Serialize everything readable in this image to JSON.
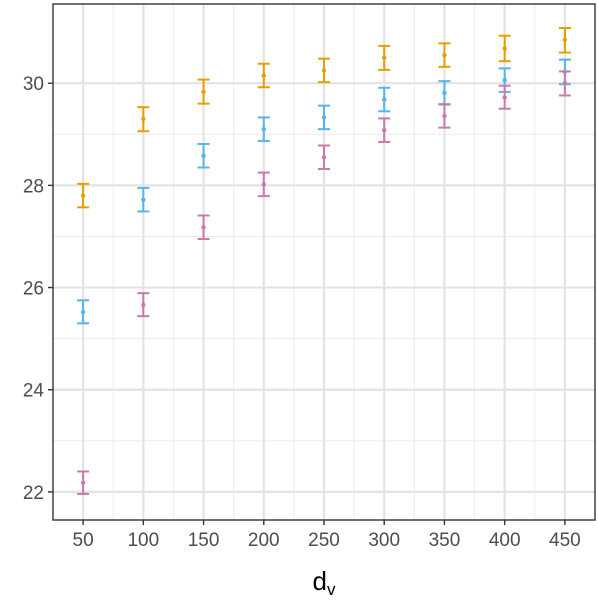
{
  "chart_data": {
    "type": "scatter",
    "title": "",
    "xlabel": "d",
    "xlabel_subscript": "v",
    "ylabel": "",
    "x": [
      50,
      100,
      150,
      200,
      250,
      300,
      350,
      400,
      450
    ],
    "xlim": [
      25,
      475
    ],
    "ylim": [
      21.45,
      31.55
    ],
    "xticks": [
      "50",
      "100",
      "150",
      "200",
      "250",
      "300",
      "350",
      "400",
      "450"
    ],
    "yticks": [
      22,
      24,
      26,
      28,
      30
    ],
    "grid": true,
    "legend": "none",
    "series": [
      {
        "color": "#E69F00",
        "mean": [
          27.8,
          29.3,
          29.83,
          30.15,
          30.25,
          30.5,
          30.55,
          30.68,
          30.85
        ],
        "lower": [
          27.57,
          29.06,
          29.6,
          29.92,
          30.02,
          30.26,
          30.32,
          30.43,
          30.6
        ],
        "upper": [
          28.03,
          29.53,
          30.07,
          30.38,
          30.48,
          30.73,
          30.78,
          30.93,
          31.08
        ]
      },
      {
        "color": "#56B4E9",
        "mean": [
          25.52,
          27.72,
          28.58,
          29.1,
          29.33,
          29.68,
          29.81,
          30.06,
          30.22
        ],
        "lower": [
          25.3,
          27.49,
          28.35,
          28.87,
          29.1,
          29.45,
          29.58,
          29.83,
          29.98
        ],
        "upper": [
          25.75,
          27.95,
          28.81,
          29.33,
          29.56,
          29.91,
          30.04,
          30.29,
          30.46
        ]
      },
      {
        "color": "#CC79A7",
        "mean": [
          22.18,
          25.66,
          27.18,
          28.02,
          28.55,
          29.08,
          29.36,
          29.72,
          30.0
        ],
        "lower": [
          21.96,
          25.44,
          26.95,
          27.79,
          28.32,
          28.85,
          29.13,
          29.5,
          29.76
        ],
        "upper": [
          22.4,
          25.89,
          27.41,
          28.25,
          28.78,
          29.31,
          29.59,
          29.95,
          30.23
        ]
      }
    ]
  }
}
